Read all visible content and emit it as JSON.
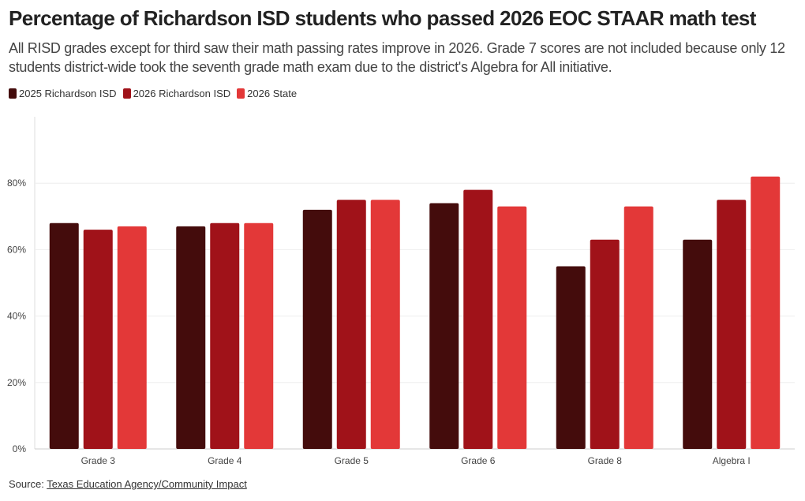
{
  "title": "Percentage of Richardson ISD students who passed 2026 EOC STAAR math test",
  "subtitle": "All RISD grades except for third saw their math passing rates improve in 2026. Grade 7 scores are not included because only 12 students district-wide took the seventh grade math exam due to the district's Algebra for All initiative.",
  "source": {
    "prefix": "Source: ",
    "link_text": "Texas Education Agency/Community Impact"
  },
  "chart_data": {
    "type": "bar",
    "categories": [
      "Grade 3",
      "Grade 4",
      "Grade 5",
      "Grade 6",
      "Grade 8",
      "Algebra I"
    ],
    "series": [
      {
        "name": "2025 Richardson ISD",
        "color": "#440c0c",
        "values": [
          68,
          67,
          72,
          74,
          55,
          63
        ]
      },
      {
        "name": "2026 Richardson ISD",
        "color": "#a01219",
        "values": [
          66,
          68,
          75,
          78,
          63,
          75
        ]
      },
      {
        "name": "2026 State",
        "color": "#e33838",
        "values": [
          67,
          68,
          75,
          73,
          73,
          82
        ]
      }
    ],
    "ylim": [
      0,
      100
    ],
    "yticks": [
      0,
      20,
      40,
      60,
      80
    ],
    "ytick_labels": [
      "0%",
      "20%",
      "40%",
      "60%",
      "80%"
    ],
    "grid": true,
    "legend_position": "top-left"
  }
}
